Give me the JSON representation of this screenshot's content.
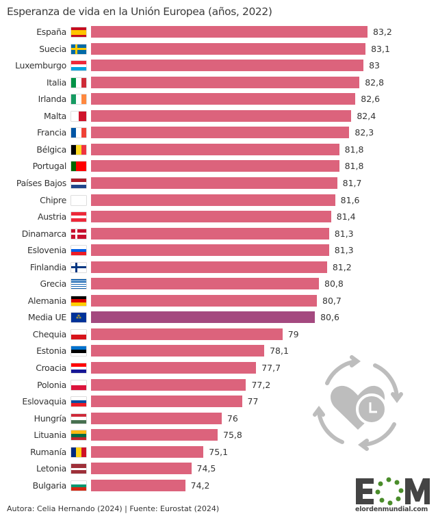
{
  "chart_data": {
    "type": "bar",
    "orientation": "horizontal",
    "title": "Esperanza de vida en la Unión Europea (años, 2022)",
    "xlim": [
      69.55,
      83.5
    ],
    "grid": false,
    "bar_color": "#dc637c",
    "highlight_color": "#a4497f",
    "categories": [
      "España",
      "Suecia",
      "Luxemburgo",
      "Italia",
      "Irlanda",
      "Malta",
      "Francia",
      "Bélgica",
      "Portugal",
      "Países Bajos",
      "Chipre",
      "Austria",
      "Dinamarca",
      "Eslovenia",
      "Finlandia",
      "Grecia",
      "Alemania",
      "Media UE",
      "Chequia",
      "Estonia",
      "Croacia",
      "Polonia",
      "Eslovaquia",
      "Hungría",
      "Lituania",
      "Rumanía",
      "Letonia",
      "Bulgaria"
    ],
    "values": [
      83.2,
      83.1,
      83,
      82.8,
      82.6,
      82.4,
      82.3,
      81.8,
      81.8,
      81.7,
      81.6,
      81.4,
      81.3,
      81.3,
      81.2,
      80.8,
      80.7,
      80.6,
      79,
      78.1,
      77.7,
      77.2,
      77,
      76,
      75.8,
      75.1,
      74.5,
      74.2
    ],
    "value_labels": [
      "83,2",
      "83,1",
      "83",
      "82,8",
      "82,6",
      "82,4",
      "82,3",
      "81,8",
      "81,8",
      "81,7",
      "81,6",
      "81,4",
      "81,3",
      "81,3",
      "81,2",
      "80,8",
      "80,7",
      "80,6",
      "79",
      "78,1",
      "77,7",
      "77,2",
      "77",
      "76",
      "75,8",
      "75,1",
      "74,5",
      "74,2"
    ],
    "highlight": "Media UE",
    "flags": [
      {
        "dir": "h",
        "c": [
          "#c60b1e",
          "#ffc400",
          "#ffc400",
          "#c60b1e"
        ]
      },
      {
        "dir": "cross",
        "c": [
          "#006aa7",
          "#fecc00"
        ]
      },
      {
        "dir": "h",
        "c": [
          "#ed2939",
          "#ffffff",
          "#00a1de"
        ]
      },
      {
        "dir": "v",
        "c": [
          "#009246",
          "#ffffff",
          "#ce2b37"
        ]
      },
      {
        "dir": "v",
        "c": [
          "#169b62",
          "#ffffff",
          "#ff883e"
        ]
      },
      {
        "dir": "v",
        "c": [
          "#ffffff",
          "#cf142b"
        ]
      },
      {
        "dir": "v",
        "c": [
          "#0055a4",
          "#ffffff",
          "#ef4135"
        ]
      },
      {
        "dir": "v",
        "c": [
          "#000000",
          "#fdda24",
          "#ef3340"
        ]
      },
      {
        "dir": "v",
        "c": [
          "#006600",
          "#ff0000",
          "#ff0000"
        ]
      },
      {
        "dir": "h",
        "c": [
          "#ae1c28",
          "#ffffff",
          "#21468b"
        ]
      },
      {
        "dir": "h",
        "c": [
          "#ffffff"
        ]
      },
      {
        "dir": "h",
        "c": [
          "#ed2939",
          "#ffffff",
          "#ed2939"
        ]
      },
      {
        "dir": "cross",
        "c": [
          "#c8102e",
          "#ffffff"
        ]
      },
      {
        "dir": "h",
        "c": [
          "#ffffff",
          "#005ce5",
          "#ed1c24"
        ]
      },
      {
        "dir": "cross",
        "c": [
          "#ffffff",
          "#003580"
        ]
      },
      {
        "dir": "h",
        "c": [
          "#0d5eaf",
          "#ffffff",
          "#0d5eaf",
          "#ffffff",
          "#0d5eaf",
          "#ffffff",
          "#0d5eaf",
          "#ffffff",
          "#0d5eaf"
        ]
      },
      {
        "dir": "h",
        "c": [
          "#000000",
          "#dd0000",
          "#ffce00"
        ]
      },
      {
        "dir": "h",
        "c": [
          "#003399"
        ]
      },
      {
        "dir": "h",
        "c": [
          "#ffffff",
          "#d7141a"
        ]
      },
      {
        "dir": "h",
        "c": [
          "#0072ce",
          "#000000",
          "#ffffff"
        ]
      },
      {
        "dir": "h",
        "c": [
          "#ff0000",
          "#ffffff",
          "#171796"
        ]
      },
      {
        "dir": "h",
        "c": [
          "#ffffff",
          "#dc143c"
        ]
      },
      {
        "dir": "h",
        "c": [
          "#ffffff",
          "#0b4ea2",
          "#ee1c25"
        ]
      },
      {
        "dir": "h",
        "c": [
          "#ce2939",
          "#ffffff",
          "#477050"
        ]
      },
      {
        "dir": "h",
        "c": [
          "#fdb913",
          "#006a44",
          "#c1272d"
        ]
      },
      {
        "dir": "v",
        "c": [
          "#002b7f",
          "#fcd116",
          "#ce1126"
        ]
      },
      {
        "dir": "h",
        "c": [
          "#9e3039",
          "#9e3039",
          "#ffffff",
          "#9e3039",
          "#9e3039"
        ]
      },
      {
        "dir": "h",
        "c": [
          "#ffffff",
          "#00966e",
          "#d62612"
        ]
      }
    ]
  },
  "footer": "Autora: Celia Hernando (2024) | Fuente: Eurostat (2024)",
  "logo": {
    "text": "EOM",
    "url": "elordenmundial.com",
    "dark": "#444444",
    "green": "#4a8c2a"
  },
  "icon": "heart-clock-cycle-icon"
}
